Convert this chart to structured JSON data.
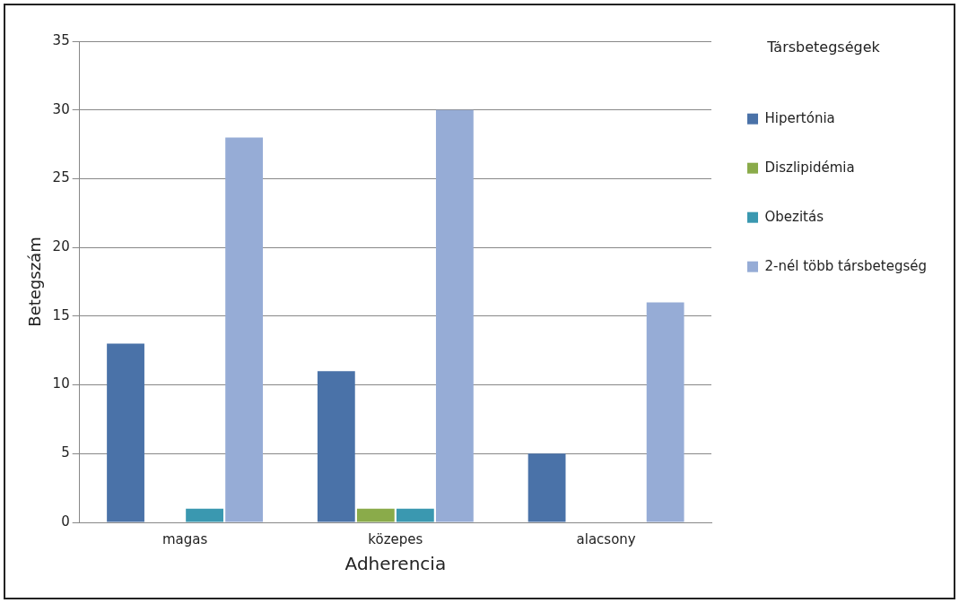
{
  "chart_data": {
    "type": "bar",
    "xlabel": "Adherencia",
    "ylabel": "Betegszám",
    "legend_title": "Társbetegségek",
    "categories": [
      "magas",
      "közepes",
      "alacsony"
    ],
    "series": [
      {
        "name": "Hipertónia",
        "color": "#4a72a8",
        "values": [
          13,
          11,
          5
        ]
      },
      {
        "name": "Diszlipidémia",
        "color": "#8aab4a",
        "values": [
          0,
          1,
          0
        ]
      },
      {
        "name": "Obezitás",
        "color": "#3a98b0",
        "values": [
          1,
          1,
          0
        ]
      },
      {
        "name": "2-nél több társbetegség",
        "color": "#96acd6",
        "values": [
          28,
          30,
          16
        ]
      }
    ],
    "ylim": [
      0,
      35
    ],
    "yticks": [
      0,
      5,
      10,
      15,
      20,
      25,
      30,
      35
    ],
    "grid": "y",
    "legend": "right"
  }
}
